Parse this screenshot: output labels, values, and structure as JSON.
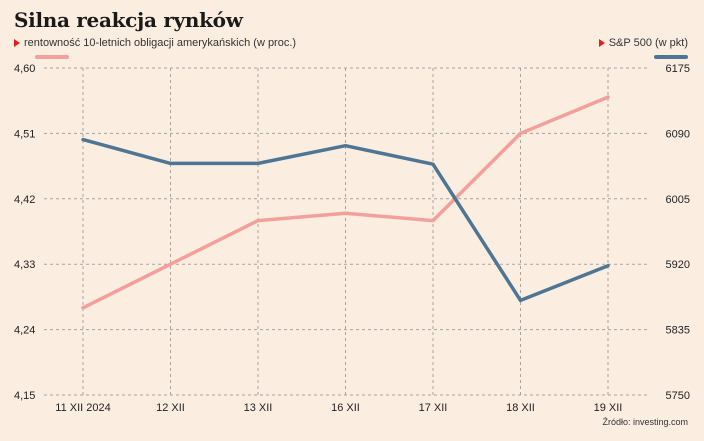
{
  "title": "Silna reakcja rynków",
  "source": "Źródło: investing.com",
  "legend": {
    "left": "rentowność 10-letnich obligacji amerykańskich (w proc.)",
    "right": "S&P 500 (w pkt)"
  },
  "colors": {
    "left_series": "#f4a09a",
    "right_series": "#4e7594",
    "grid": "#a9a39e",
    "marker": "#e0201b"
  },
  "chart_data": {
    "type": "line",
    "categories": [
      "11 XII 2024",
      "12 XII",
      "13 XII",
      "16 XII",
      "17 XII",
      "18 XII",
      "19 XII"
    ],
    "y_left": {
      "ticks": [
        "4,60",
        "4,51",
        "4,42",
        "4,33",
        "4,24",
        "4,15"
      ],
      "range": [
        4.15,
        4.6
      ]
    },
    "y_right": {
      "ticks": [
        "6175",
        "6090",
        "6005",
        "5920",
        "5835",
        "5750"
      ],
      "range": [
        5750,
        6175
      ]
    },
    "grid": true,
    "series": [
      {
        "name": "rentowność 10-letnich obligacji amerykańskich (w proc.)",
        "axis": "left",
        "values": [
          4.27,
          4.33,
          4.39,
          4.4,
          4.39,
          4.51,
          4.56
        ]
      },
      {
        "name": "S&P 500 (w pkt)",
        "axis": "right",
        "values": [
          6082,
          6051,
          6051,
          6074,
          6050,
          5873,
          5918
        ]
      }
    ]
  }
}
